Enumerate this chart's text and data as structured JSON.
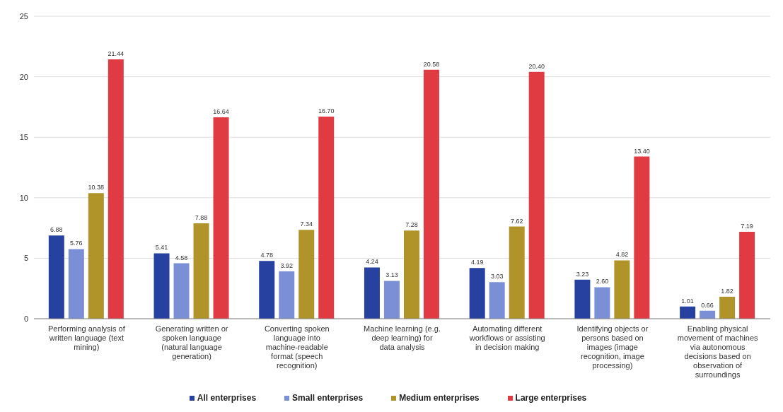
{
  "chart_data": {
    "type": "bar",
    "categories": [
      "Performing analysis of written language (text mining)",
      "Generating written or spoken language (natural language generation)",
      "Converting spoken language into machine-readable format (speech recognition)",
      "Machine learning (e.g. deep learning) for data analysis",
      "Automating different workflows or assisting in decision making",
      "Identifying objects or persons based on images (image recognition, image processing)",
      "Enabling physical movement of machines via autonomous decisions based on observation of surroundings"
    ],
    "series": [
      {
        "name": "All enterprises",
        "color": "#2641a0",
        "values": [
          6.88,
          5.41,
          4.78,
          4.24,
          4.19,
          3.23,
          1.01
        ],
        "value_labels": [
          "6.88",
          "5.41",
          "4.78",
          "4.24",
          "4.19",
          "3.23",
          "1.01"
        ]
      },
      {
        "name": "Small enterprises",
        "color": "#7b8fd6",
        "values": [
          5.76,
          4.58,
          3.92,
          3.13,
          3.03,
          2.6,
          0.66
        ],
        "value_labels": [
          "5.76",
          "4.58",
          "3.92",
          "3.13",
          "3.03",
          "2.60",
          "0.66"
        ]
      },
      {
        "name": "Medium enterprises",
        "color": "#b0942a",
        "values": [
          10.38,
          7.88,
          7.34,
          7.28,
          7.62,
          4.82,
          1.82
        ],
        "value_labels": [
          "10.38",
          "7.88",
          "7.34",
          "7.28",
          "7.62",
          "4.82",
          "1.82"
        ]
      },
      {
        "name": "Large enterprises",
        "color": "#e03a42",
        "values": [
          21.44,
          16.64,
          16.7,
          20.58,
          20.4,
          13.4,
          7.19
        ],
        "value_labels": [
          "21.44",
          "16.64",
          "16.70",
          "20.58",
          "20.40",
          "13.40",
          "7.19"
        ]
      }
    ],
    "ylim": [
      0,
      25
    ],
    "yticks": [
      0,
      5,
      10,
      15,
      20,
      25
    ],
    "grid": "y",
    "legend": "bottom"
  }
}
